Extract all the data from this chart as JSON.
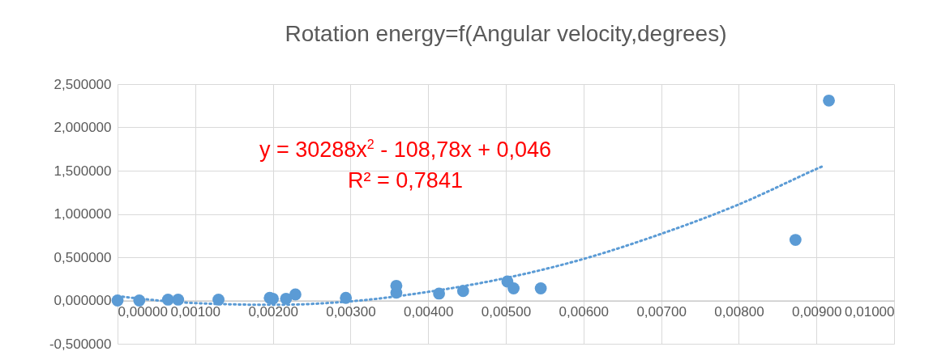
{
  "chart_data": {
    "type": "scatter",
    "title": "Rotation energy=f(Angular velocity,degrees)",
    "annotations": [
      "y = 30288x$^{2}$ - 108,78x + 0,046",
      "R² = 0,7841"
    ],
    "series": [
      {
        "color": "#5b9bd5",
        "x": [
          0,
          0.00028,
          0.00065,
          0.00078,
          0.0013,
          0.00196,
          0.002,
          0.00217,
          0.00229,
          0.00294,
          0.00359,
          0.00359,
          0.00414,
          0.00445,
          0.00502,
          0.0051,
          0.00545,
          0.00873,
          0.00916
        ],
        "values": [
          0,
          0,
          0.01,
          0.01,
          0.01,
          0.03,
          0.02,
          0.02,
          0.07,
          0.03,
          0.09,
          0.17,
          0.08,
          0.11,
          0.22,
          0.14,
          0.14,
          0.7,
          2.31
        ]
      },
      {
        "type": "line",
        "color": "#5b9bd5",
        "line_style": "dotted",
        "marker": "none",
        "x": [
          0,
          0.001,
          0.002,
          0.003,
          0.004,
          0.005,
          0.006,
          0.007,
          0.008,
          0.009,
          0.0091
        ],
        "values": [
          0.05,
          -0.03,
          -0.05,
          -0.01,
          0.1,
          0.26,
          0.48,
          0.77,
          1.11,
          1.52,
          1.56
        ]
      }
    ],
    "xlim": [
      0,
      0.01
    ],
    "xticks": [
      {
        "value": 0,
        "label": "0,00000"
      },
      {
        "value": 0.001,
        "label": "0,00100"
      },
      {
        "value": 0.002,
        "label": "0,00200"
      },
      {
        "value": 0.003,
        "label": "0,00300"
      },
      {
        "value": 0.004,
        "label": "0,00400"
      },
      {
        "value": 0.005,
        "label": "0,00500"
      },
      {
        "value": 0.006,
        "label": "0,00600"
      },
      {
        "value": 0.007,
        "label": "0,00700"
      },
      {
        "value": 0.008,
        "label": "0,00800"
      },
      {
        "value": 0.009,
        "label": "0,00900"
      },
      {
        "value": 0.01,
        "label": "0,01000"
      }
    ],
    "ylim": [
      -0.5,
      2.5
    ],
    "yticks": [
      {
        "value": -0.5,
        "label": "-0,500000"
      },
      {
        "value": 0,
        "label": "0,000000"
      },
      {
        "value": 0.5,
        "label": "0,500000"
      },
      {
        "value": 1,
        "label": "1,000000"
      },
      {
        "value": 1.5,
        "label": "1,500000"
      },
      {
        "value": 2,
        "label": "2,000000"
      },
      {
        "value": 2.5,
        "label": "2,500000"
      }
    ],
    "grid": true,
    "marker": "circle"
  }
}
